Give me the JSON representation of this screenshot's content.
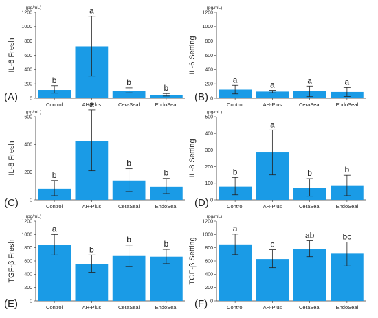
{
  "colors": {
    "bar": "#1a9be6",
    "axis": "#333333",
    "errorbar": "#222222"
  },
  "chart_data": [
    {
      "type": "bar",
      "panel_label": "(A)",
      "ylabel": "IL-6  Fresh",
      "unit": "(pg/mL)",
      "ylim": [
        0,
        1200
      ],
      "yticks": [
        0,
        200,
        400,
        600,
        800,
        1000,
        1200
      ],
      "categories": [
        "Control",
        "AH-Plus",
        "CeraSeal",
        "EndoSeal"
      ],
      "values": [
        115,
        725,
        105,
        45
      ],
      "err_low": [
        70,
        310,
        75,
        30
      ],
      "err_high": [
        175,
        1145,
        145,
        65
      ],
      "letters": [
        "b",
        "a",
        "b",
        "b"
      ]
    },
    {
      "type": "bar",
      "panel_label": "(B)",
      "ylabel": "IL-6  Setting",
      "unit": "(pg/mL)",
      "ylim": [
        0,
        1200
      ],
      "yticks": [
        0,
        200,
        400,
        600,
        800,
        1000,
        1200
      ],
      "categories": [
        "Control",
        "AH-Plus",
        "CeraSeal",
        "EndoSeal"
      ],
      "values": [
        120,
        92,
        96,
        87
      ],
      "err_low": [
        60,
        75,
        22,
        25
      ],
      "err_high": [
        180,
        110,
        170,
        150
      ],
      "letters": [
        "a",
        "a",
        "a",
        "a"
      ]
    },
    {
      "type": "bar",
      "panel_label": "(C)",
      "ylabel": "IL-8  Fresh",
      "unit": "(pg/mL)",
      "ylim": [
        0,
        600
      ],
      "yticks": [
        0,
        200,
        400,
        600
      ],
      "categories": [
        "Control",
        "AH-Plus",
        "CeraSeal",
        "EndoSeal"
      ],
      "values": [
        80,
        425,
        140,
        95
      ],
      "err_low": [
        30,
        210,
        60,
        45
      ],
      "err_high": [
        140,
        650,
        225,
        155
      ],
      "letters": [
        "b",
        "a",
        "b",
        "b"
      ]
    },
    {
      "type": "bar",
      "panel_label": "(D)",
      "ylabel": "IL-8  Setting",
      "unit": "(pg/mL)",
      "ylim": [
        0,
        500
      ],
      "yticks": [
        0,
        100,
        200,
        300,
        400,
        500
      ],
      "categories": [
        "Control",
        "AH-Plus",
        "CeraSeal",
        "EndoSeal"
      ],
      "values": [
        80,
        285,
        72,
        84
      ],
      "err_low": [
        30,
        150,
        22,
        25
      ],
      "err_high": [
        135,
        420,
        128,
        148
      ],
      "letters": [
        "b",
        "a",
        "b",
        "b"
      ]
    },
    {
      "type": "bar",
      "panel_label": "(E)",
      "ylabel": "TGF-β  Fresh",
      "unit": "(pg/mL)",
      "ylim": [
        0,
        1200
      ],
      "yticks": [
        0,
        200,
        400,
        600,
        800,
        1000,
        1200
      ],
      "categories": [
        "Control",
        "AH-Plus",
        "CeraSeal",
        "EndoSeal"
      ],
      "values": [
        845,
        555,
        675,
        665
      ],
      "err_low": [
        690,
        430,
        515,
        560
      ],
      "err_high": [
        1000,
        690,
        840,
        775
      ],
      "letters": [
        "a",
        "b",
        "b",
        "b"
      ]
    },
    {
      "type": "bar",
      "panel_label": "(F)",
      "ylabel": "TGF-β  Setting",
      "unit": "(pg/mL)",
      "ylim": [
        0,
        1200
      ],
      "yticks": [
        0,
        200,
        400,
        600,
        800,
        1000,
        1200
      ],
      "categories": [
        "Control",
        "AH-Plus",
        "CeraSeal",
        "EndoSeal"
      ],
      "values": [
        850,
        630,
        780,
        710
      ],
      "err_low": [
        695,
        500,
        665,
        525
      ],
      "err_high": [
        1005,
        770,
        905,
        885
      ],
      "letters": [
        "a",
        "c",
        "ab",
        "bc"
      ]
    }
  ]
}
